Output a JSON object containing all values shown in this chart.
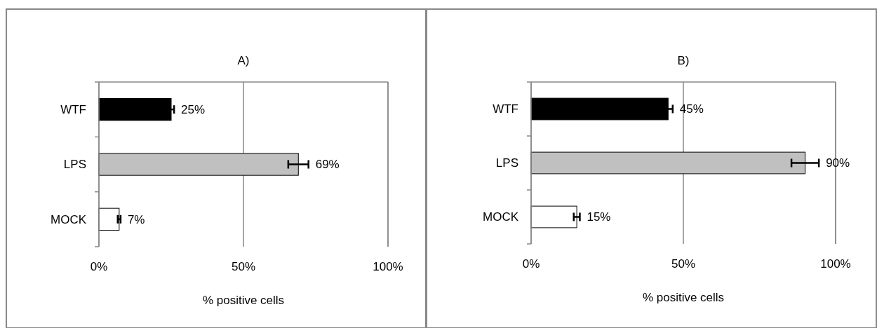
{
  "chart_data": [
    {
      "type": "bar",
      "title": "A)",
      "xlabel": "% positive cells",
      "orientation": "horizontal",
      "categories": [
        "WTF",
        "LPS",
        "MOCK"
      ],
      "values": [
        25,
        69,
        7
      ],
      "colors": [
        "#000000",
        "#c0c0c0",
        "#ffffff"
      ],
      "errors": [
        1,
        3.5,
        0.5
      ],
      "value_labels": [
        "25%",
        "69%",
        "7%"
      ],
      "xlim": [
        0,
        100
      ],
      "xticks": [
        {
          "value": 0,
          "label": "0%"
        },
        {
          "value": 50,
          "label": "50%"
        },
        {
          "value": 100,
          "label": "100%"
        }
      ],
      "grid": "x"
    },
    {
      "type": "bar",
      "title": "B)",
      "xlabel": "% positive cells",
      "orientation": "horizontal",
      "categories": [
        "WTF",
        "LPS",
        "MOCK"
      ],
      "values": [
        45,
        90,
        15
      ],
      "colors": [
        "#000000",
        "#c0c0c0",
        "#ffffff"
      ],
      "errors": [
        1.5,
        4.5,
        1
      ],
      "value_labels": [
        "45%",
        "90%",
        "15%"
      ],
      "xlim": [
        0,
        100
      ],
      "xticks": [
        {
          "value": 0,
          "label": "0%"
        },
        {
          "value": 50,
          "label": "50%"
        },
        {
          "value": 100,
          "label": "100%"
        }
      ],
      "grid": "x"
    }
  ]
}
